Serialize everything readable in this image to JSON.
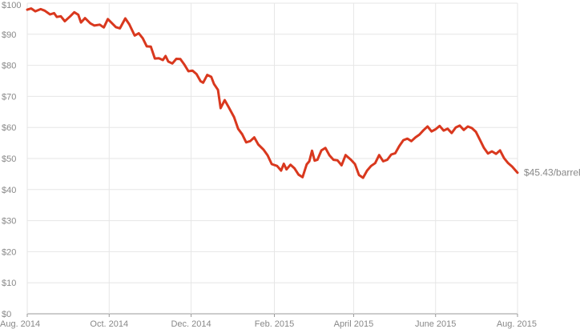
{
  "chart_data": {
    "type": "line",
    "title": "",
    "xlabel": "",
    "ylabel": "",
    "ylim": [
      0,
      100
    ],
    "y_ticks": [
      {
        "value": 0,
        "label": "$0"
      },
      {
        "value": 10,
        "label": "$10"
      },
      {
        "value": 20,
        "label": "$20"
      },
      {
        "value": 30,
        "label": "$30"
      },
      {
        "value": 40,
        "label": "$40"
      },
      {
        "value": 50,
        "label": "$50"
      },
      {
        "value": 60,
        "label": "$60"
      },
      {
        "value": 70,
        "label": "$70"
      },
      {
        "value": 80,
        "label": "$80"
      },
      {
        "value": 90,
        "label": "$90"
      },
      {
        "value": 100,
        "label": "$100"
      }
    ],
    "x_range": [
      "2014-08-01",
      "2015-08-01"
    ],
    "x_ticks": [
      {
        "date": "2014-08-01",
        "label": "Aug. 2014"
      },
      {
        "date": "2014-10-01",
        "label": "Oct. 2014"
      },
      {
        "date": "2014-12-01",
        "label": "Dec. 2014"
      },
      {
        "date": "2015-02-01",
        "label": "Feb. 2015"
      },
      {
        "date": "2015-04-01",
        "label": "April 2015"
      },
      {
        "date": "2015-06-01",
        "label": "June 2015"
      },
      {
        "date": "2015-08-01",
        "label": "Aug. 2015"
      }
    ],
    "grid": true,
    "line_color": "#d9381e",
    "end_label": "$45.43/barrel",
    "series": [
      {
        "points": [
          [
            "2014-08-01",
            97.9
          ],
          [
            "2014-08-04",
            98.3
          ],
          [
            "2014-08-07",
            97.4
          ],
          [
            "2014-08-11",
            98.1
          ],
          [
            "2014-08-14",
            97.6
          ],
          [
            "2014-08-18",
            96.4
          ],
          [
            "2014-08-21",
            96.8
          ],
          [
            "2014-08-23",
            95.6
          ],
          [
            "2014-08-26",
            95.8
          ],
          [
            "2014-08-29",
            94.2
          ],
          [
            "2014-09-02",
            95.8
          ],
          [
            "2014-09-05",
            97.1
          ],
          [
            "2014-09-08",
            96.3
          ],
          [
            "2014-09-10",
            93.8
          ],
          [
            "2014-09-13",
            95.2
          ],
          [
            "2014-09-17",
            93.5
          ],
          [
            "2014-09-20",
            92.8
          ],
          [
            "2014-09-24",
            93.1
          ],
          [
            "2014-09-27",
            92.2
          ],
          [
            "2014-09-30",
            94.9
          ],
          [
            "2014-10-03",
            93.6
          ],
          [
            "2014-10-06",
            92.3
          ],
          [
            "2014-10-09",
            91.9
          ],
          [
            "2014-10-13",
            95.1
          ],
          [
            "2014-10-16",
            93.2
          ],
          [
            "2014-10-20",
            89.6
          ],
          [
            "2014-10-23",
            90.3
          ],
          [
            "2014-10-26",
            88.7
          ],
          [
            "2014-10-29",
            86.1
          ],
          [
            "2014-11-01",
            86.0
          ],
          [
            "2014-11-04",
            82.2
          ],
          [
            "2014-11-07",
            82.3
          ],
          [
            "2014-11-10",
            81.7
          ],
          [
            "2014-11-12",
            83.0
          ],
          [
            "2014-11-14",
            81.2
          ],
          [
            "2014-11-17",
            80.6
          ],
          [
            "2014-11-20",
            82.1
          ],
          [
            "2014-11-23",
            82.0
          ],
          [
            "2014-11-26",
            80.2
          ],
          [
            "2014-11-29",
            78.1
          ],
          [
            "2014-12-02",
            78.3
          ],
          [
            "2014-12-05",
            77.2
          ],
          [
            "2014-12-08",
            74.9
          ],
          [
            "2014-12-10",
            74.4
          ],
          [
            "2014-12-13",
            76.9
          ],
          [
            "2014-12-16",
            76.3
          ],
          [
            "2014-12-18",
            74.0
          ],
          [
            "2014-12-21",
            72.1
          ],
          [
            "2014-12-23",
            66.2
          ],
          [
            "2014-12-26",
            68.8
          ],
          [
            "2014-12-29",
            66.5
          ],
          [
            "2015-01-02",
            63.3
          ],
          [
            "2015-01-05",
            59.6
          ],
          [
            "2015-01-08",
            57.8
          ],
          [
            "2015-01-11",
            55.2
          ],
          [
            "2015-01-14",
            55.6
          ],
          [
            "2015-01-17",
            56.8
          ],
          [
            "2015-01-20",
            54.5
          ],
          [
            "2015-01-24",
            52.8
          ],
          [
            "2015-01-27",
            51.0
          ],
          [
            "2015-01-30",
            48.2
          ],
          [
            "2015-02-03",
            47.6
          ],
          [
            "2015-02-06",
            46.1
          ],
          [
            "2015-02-08",
            48.3
          ],
          [
            "2015-02-10",
            46.5
          ],
          [
            "2015-02-13",
            48.0
          ],
          [
            "2015-02-16",
            46.8
          ],
          [
            "2015-02-19",
            44.8
          ],
          [
            "2015-02-22",
            44.0
          ],
          [
            "2015-02-25",
            48.1
          ],
          [
            "2015-02-27",
            49.1
          ],
          [
            "2015-03-01",
            52.5
          ],
          [
            "2015-03-03",
            49.3
          ],
          [
            "2015-03-05",
            49.6
          ],
          [
            "2015-03-08",
            52.6
          ],
          [
            "2015-03-11",
            53.4
          ],
          [
            "2015-03-14",
            51.0
          ],
          [
            "2015-03-17",
            49.6
          ],
          [
            "2015-03-20",
            49.4
          ],
          [
            "2015-03-23",
            47.8
          ],
          [
            "2015-03-26",
            51.1
          ],
          [
            "2015-03-30",
            49.6
          ],
          [
            "2015-04-02",
            48.2
          ],
          [
            "2015-04-05",
            44.7
          ],
          [
            "2015-04-08",
            43.8
          ],
          [
            "2015-04-11",
            46.1
          ],
          [
            "2015-04-14",
            47.6
          ],
          [
            "2015-04-17",
            48.5
          ],
          [
            "2015-04-20",
            51.1
          ],
          [
            "2015-04-23",
            49.1
          ],
          [
            "2015-04-26",
            49.6
          ],
          [
            "2015-04-29",
            51.3
          ],
          [
            "2015-05-02",
            51.7
          ],
          [
            "2015-05-05",
            54.0
          ],
          [
            "2015-05-08",
            55.9
          ],
          [
            "2015-05-11",
            56.4
          ],
          [
            "2015-05-14",
            55.6
          ],
          [
            "2015-05-17",
            56.8
          ],
          [
            "2015-05-20",
            57.7
          ],
          [
            "2015-05-23",
            59.1
          ],
          [
            "2015-05-26",
            60.3
          ],
          [
            "2015-05-29",
            58.7
          ],
          [
            "2015-06-01",
            59.4
          ],
          [
            "2015-06-04",
            60.5
          ],
          [
            "2015-06-07",
            59.0
          ],
          [
            "2015-06-10",
            59.6
          ],
          [
            "2015-06-13",
            58.2
          ],
          [
            "2015-06-16",
            60.0
          ],
          [
            "2015-06-19",
            60.6
          ],
          [
            "2015-06-22",
            59.2
          ],
          [
            "2015-06-25",
            60.3
          ],
          [
            "2015-06-28",
            59.8
          ],
          [
            "2015-07-01",
            58.6
          ],
          [
            "2015-07-04",
            56.0
          ],
          [
            "2015-07-07",
            53.4
          ],
          [
            "2015-07-10",
            51.6
          ],
          [
            "2015-07-13",
            52.3
          ],
          [
            "2015-07-16",
            51.5
          ],
          [
            "2015-07-19",
            52.6
          ],
          [
            "2015-07-22",
            50.1
          ],
          [
            "2015-07-25",
            48.5
          ],
          [
            "2015-07-28",
            47.4
          ],
          [
            "2015-08-01",
            45.43
          ]
        ]
      }
    ]
  }
}
